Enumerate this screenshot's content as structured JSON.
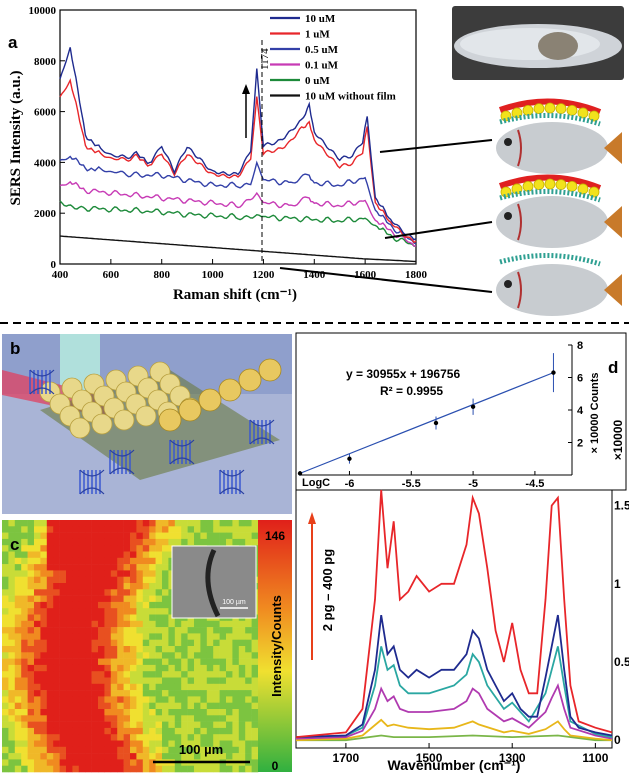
{
  "panels": {
    "a": {
      "letter": "a"
    },
    "b": {
      "letter": "b"
    },
    "c": {
      "letter": "c"
    },
    "d": {
      "letter": "d"
    }
  },
  "colors": {
    "10 uM": "#1f2b8f",
    "1 uM": "#e8262a",
    "0.5 uM": "#3340a8",
    "0.1 uM": "#c73ab5",
    "0 uM": "#1d8a3a",
    "10 uM without film": "#111111"
  },
  "chart_data": [
    {
      "type": "line",
      "panel": "a",
      "xlabel": "Raman shift (cm⁻¹)",
      "ylabel": "SERS Intensity (a.u.)",
      "xlim": [
        400,
        1800
      ],
      "ylim": [
        0,
        10000
      ],
      "xticks": [
        "400",
        "600",
        "800",
        "1000",
        "1200",
        "1400",
        "1600",
        "1800"
      ],
      "yticks": [
        "0",
        "2000",
        "4000",
        "6000",
        "8000",
        "10000"
      ],
      "legend_position": "top",
      "annotation": "1174",
      "series": [
        {
          "name": "10 uM",
          "x": [
            400,
            440,
            500,
            560,
            630,
            700,
            760,
            800,
            850,
            900,
            950,
            1000,
            1050,
            1100,
            1150,
            1174,
            1200,
            1250,
            1300,
            1350,
            1380,
            1400,
            1450,
            1500,
            1550,
            1590,
            1608,
            1640,
            1700,
            1750,
            1800
          ],
          "y": [
            7200,
            8500,
            5100,
            4500,
            4200,
            4300,
            4000,
            4700,
            3600,
            4600,
            4200,
            3600,
            3500,
            3600,
            4500,
            7700,
            4600,
            4800,
            5200,
            5600,
            6300,
            5200,
            4700,
            4100,
            4200,
            4800,
            5800,
            2600,
            1700,
            1300,
            1000
          ]
        },
        {
          "name": "1 uM",
          "x": [
            400,
            440,
            500,
            560,
            630,
            700,
            760,
            800,
            850,
            900,
            950,
            1000,
            1050,
            1100,
            1150,
            1174,
            1200,
            1250,
            1300,
            1350,
            1380,
            1400,
            1450,
            1500,
            1550,
            1590,
            1608,
            1640,
            1700,
            1750,
            1800
          ],
          "y": [
            6500,
            7200,
            4700,
            4300,
            4100,
            4200,
            3900,
            4400,
            3500,
            4300,
            4000,
            3500,
            3400,
            3500,
            4200,
            6600,
            4300,
            4500,
            4800,
            5300,
            5600,
            4900,
            4400,
            3800,
            3900,
            4400,
            5400,
            2400,
            1600,
            1200,
            900
          ]
        },
        {
          "name": "0.5 uM",
          "x": [
            400,
            440,
            500,
            560,
            630,
            700,
            800,
            900,
            1000,
            1100,
            1150,
            1174,
            1200,
            1300,
            1380,
            1400,
            1500,
            1600,
            1640,
            1700,
            1800
          ],
          "y": [
            4000,
            4200,
            3800,
            3700,
            3600,
            3500,
            3500,
            3300,
            3100,
            3100,
            3200,
            4000,
            3300,
            3200,
            3500,
            3200,
            3100,
            3400,
            2100,
            1500,
            800
          ]
        },
        {
          "name": "0.1 uM",
          "x": [
            400,
            440,
            500,
            600,
            700,
            800,
            900,
            1000,
            1100,
            1174,
            1200,
            1300,
            1380,
            1400,
            1500,
            1600,
            1640,
            1700,
            1800
          ],
          "y": [
            3000,
            3200,
            2900,
            2800,
            2700,
            2600,
            2500,
            2400,
            2300,
            2800,
            2400,
            2300,
            2600,
            2400,
            2300,
            2500,
            1700,
            1300,
            700
          ]
        },
        {
          "name": "0 uM",
          "x": [
            400,
            450,
            500,
            600,
            700,
            800,
            900,
            1000,
            1100,
            1174,
            1200,
            1300,
            1400,
            1500,
            1600,
            1640,
            1700,
            1800
          ],
          "y": [
            2400,
            2300,
            2200,
            2150,
            2100,
            2050,
            1950,
            1900,
            1850,
            1950,
            1850,
            1800,
            1750,
            1700,
            1800,
            1500,
            1100,
            700
          ]
        },
        {
          "name": "10 uM without film",
          "x": [
            400,
            600,
            800,
            1000,
            1200,
            1400,
            1600,
            1800
          ],
          "y": [
            1100,
            950,
            800,
            650,
            500,
            350,
            200,
            100
          ]
        }
      ]
    },
    {
      "type": "scatter",
      "panel": "d-inset",
      "equation": "y = 30955x + 196756",
      "r_squared": "R² = 0.9955",
      "xlabel": "LogC",
      "ylabel": "× 10000 Counts",
      "xticks": [
        "-6",
        "-5.5",
        "-5",
        "-4.5"
      ],
      "yticks": [
        "2",
        "4",
        "6",
        "8"
      ],
      "xlim": [
        -6.4,
        -4.2
      ],
      "ylim": [
        0,
        8
      ],
      "x": [
        -6.4,
        -6.0,
        -5.3,
        -5.0,
        -4.35
      ],
      "y": [
        0.1,
        1.0,
        3.2,
        4.2,
        6.3
      ],
      "errors": [
        0.15,
        0.3,
        0.4,
        0.5,
        1.2
      ]
    },
    {
      "type": "line",
      "panel": "d",
      "xlabel": "Wavenumber (cm⁻¹)",
      "ylabel": "×10000",
      "xticks": [
        "1700",
        "1500",
        "1300",
        "1100"
      ],
      "yticks": [
        "0",
        "0.5",
        "1",
        "1.5"
      ],
      "xlim": [
        1820,
        1060
      ],
      "ylim": [
        -0.05,
        1.6
      ],
      "annotation": "2 pg – 400 pg",
      "series": [
        {
          "color": "#e8262a",
          "x": [
            1820,
            1700,
            1660,
            1630,
            1615,
            1600,
            1585,
            1570,
            1550,
            1530,
            1500,
            1470,
            1440,
            1410,
            1395,
            1380,
            1360,
            1340,
            1320,
            1300,
            1280,
            1260,
            1240,
            1220,
            1205,
            1190,
            1175,
            1160,
            1140,
            1100,
            1060
          ],
          "y": [
            0.02,
            0.05,
            0.2,
            0.9,
            1.6,
            1.1,
            1.4,
            0.9,
            0.95,
            1.05,
            0.95,
            1.0,
            1.0,
            1.25,
            1.55,
            1.45,
            1.1,
            0.7,
            0.5,
            0.75,
            0.45,
            0.3,
            0.3,
            0.9,
            1.5,
            1.55,
            0.9,
            0.35,
            0.12,
            0.08,
            0.05
          ]
        },
        {
          "color": "#1f2b8f",
          "x": [
            1820,
            1700,
            1660,
            1630,
            1615,
            1600,
            1585,
            1570,
            1550,
            1530,
            1500,
            1470,
            1440,
            1410,
            1395,
            1380,
            1360,
            1340,
            1320,
            1300,
            1280,
            1260,
            1240,
            1220,
            1205,
            1190,
            1175,
            1160,
            1140,
            1100,
            1060
          ],
          "y": [
            0.02,
            0.03,
            0.1,
            0.45,
            0.8,
            0.55,
            0.6,
            0.45,
            0.4,
            0.45,
            0.4,
            0.45,
            0.45,
            0.55,
            0.7,
            0.65,
            0.45,
            0.35,
            0.25,
            0.3,
            0.2,
            0.15,
            0.15,
            0.4,
            0.6,
            0.8,
            0.45,
            0.15,
            0.08,
            0.05,
            0.03
          ]
        },
        {
          "color": "#2aa7a2",
          "x": [
            1820,
            1700,
            1660,
            1630,
            1615,
            1600,
            1585,
            1570,
            1550,
            1500,
            1440,
            1410,
            1395,
            1380,
            1360,
            1320,
            1300,
            1260,
            1220,
            1205,
            1190,
            1175,
            1160,
            1100,
            1060
          ],
          "y": [
            0.02,
            0.03,
            0.08,
            0.35,
            0.6,
            0.45,
            0.48,
            0.35,
            0.3,
            0.3,
            0.35,
            0.42,
            0.55,
            0.5,
            0.35,
            0.2,
            0.24,
            0.12,
            0.3,
            0.45,
            0.6,
            0.35,
            0.12,
            0.04,
            0.02
          ]
        },
        {
          "color": "#b03ab0",
          "x": [
            1820,
            1700,
            1660,
            1630,
            1615,
            1600,
            1585,
            1570,
            1550,
            1500,
            1440,
            1410,
            1395,
            1380,
            1360,
            1320,
            1300,
            1260,
            1220,
            1205,
            1190,
            1175,
            1160,
            1100,
            1060
          ],
          "y": [
            0.01,
            0.02,
            0.06,
            0.2,
            0.33,
            0.25,
            0.28,
            0.2,
            0.18,
            0.18,
            0.2,
            0.25,
            0.33,
            0.3,
            0.2,
            0.12,
            0.14,
            0.08,
            0.18,
            0.27,
            0.35,
            0.2,
            0.08,
            0.03,
            0.01
          ]
        },
        {
          "color": "#e8b71a",
          "x": [
            1820,
            1700,
            1660,
            1615,
            1600,
            1585,
            1550,
            1500,
            1440,
            1395,
            1380,
            1320,
            1300,
            1260,
            1220,
            1190,
            1175,
            1160,
            1100,
            1060
          ],
          "y": [
            0.0,
            0.01,
            0.03,
            0.13,
            0.09,
            0.1,
            0.08,
            0.07,
            0.08,
            0.12,
            0.1,
            0.05,
            0.06,
            0.04,
            0.07,
            0.12,
            0.07,
            0.03,
            0.01,
            0.0
          ]
        },
        {
          "color": "#7ab648",
          "x": [
            1820,
            1700,
            1615,
            1585,
            1500,
            1395,
            1300,
            1190,
            1100,
            1060
          ],
          "y": [
            0.0,
            0.0,
            0.03,
            0.02,
            0.02,
            0.03,
            0.02,
            0.03,
            0.0,
            0.0
          ]
        }
      ]
    },
    {
      "type": "heatmap",
      "panel": "c",
      "colorbar_label": "Intensity/Counts",
      "colorbar_max": "146",
      "colorbar_min": "0",
      "scalebar": "100 µm",
      "inset_scalebar": "100 µm"
    }
  ]
}
